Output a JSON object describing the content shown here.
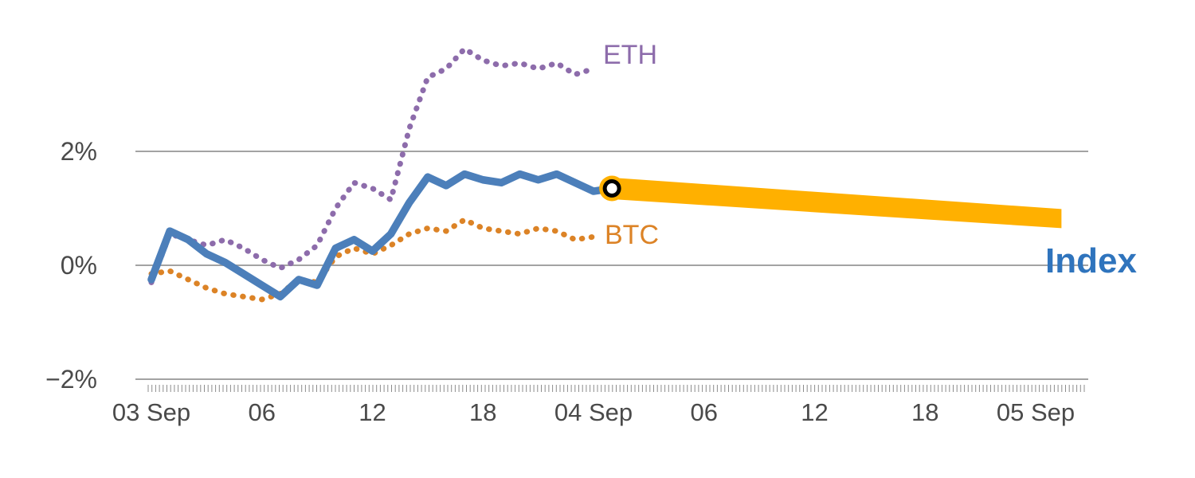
{
  "chart_data": {
    "type": "line",
    "title": "",
    "x_unit": "hours since 03 Sep 00:00",
    "xlim": [
      0,
      50.8
    ],
    "ylim": [
      -2.2,
      3.9
    ],
    "grid": "horizontal",
    "legend_position": "inline-end-of-line-labels",
    "xticks": [
      {
        "hour": 0,
        "label": "03 Sep"
      },
      {
        "hour": 6,
        "label": "06"
      },
      {
        "hour": 12,
        "label": "12"
      },
      {
        "hour": 18,
        "label": "18"
      },
      {
        "hour": 24,
        "label": "04 Sep"
      },
      {
        "hour": 30,
        "label": "06"
      },
      {
        "hour": 36,
        "label": "12"
      },
      {
        "hour": 42,
        "label": "18"
      },
      {
        "hour": 48,
        "label": "05 Sep"
      }
    ],
    "yticks": [
      {
        "value": 2,
        "label": "2%"
      },
      {
        "value": 0,
        "label": "0%"
      },
      {
        "value": -2,
        "label": "−2%"
      }
    ],
    "series": [
      {
        "name": "ETH",
        "color": "#8d6cab",
        "style": "dotted",
        "x": [
          0,
          1,
          2,
          3,
          4,
          5,
          6,
          7,
          8,
          9,
          10,
          11,
          12,
          13,
          14,
          15,
          16,
          17,
          18,
          19,
          20,
          21,
          22,
          23,
          24
        ],
        "values": [
          -0.3,
          0.55,
          0.45,
          0.35,
          0.45,
          0.3,
          0.1,
          -0.05,
          0.1,
          0.35,
          1.0,
          1.45,
          1.35,
          1.15,
          2.4,
          3.3,
          3.45,
          3.8,
          3.6,
          3.5,
          3.55,
          3.45,
          3.55,
          3.35,
          3.45
        ]
      },
      {
        "name": "BTC",
        "color": "#dc8326",
        "style": "dotted",
        "x": [
          0,
          1,
          2,
          3,
          4,
          5,
          6,
          7,
          8,
          9,
          10,
          11,
          12,
          13,
          14,
          15,
          16,
          17,
          18,
          19,
          20,
          21,
          22,
          23,
          24
        ],
        "values": [
          -0.15,
          -0.1,
          -0.25,
          -0.4,
          -0.5,
          -0.55,
          -0.6,
          -0.5,
          -0.25,
          -0.3,
          0.15,
          0.3,
          0.2,
          0.35,
          0.55,
          0.65,
          0.6,
          0.8,
          0.65,
          0.6,
          0.55,
          0.65,
          0.6,
          0.45,
          0.5
        ]
      },
      {
        "name": "Index",
        "color": "#4c7fba",
        "style": "solid",
        "x": [
          0,
          1,
          2,
          3,
          4,
          5,
          6,
          7,
          8,
          9,
          10,
          11,
          12,
          13,
          14,
          15,
          16,
          17,
          18,
          19,
          20,
          21,
          22,
          23,
          24,
          25
        ],
        "values": [
          -0.25,
          0.6,
          0.45,
          0.2,
          0.05,
          -0.15,
          -0.35,
          -0.55,
          -0.25,
          -0.35,
          0.3,
          0.45,
          0.25,
          0.55,
          1.1,
          1.55,
          1.4,
          1.6,
          1.5,
          1.45,
          1.6,
          1.5,
          1.6,
          1.45,
          1.3,
          1.35
        ]
      }
    ],
    "forecast_band": {
      "name": "Index forecast",
      "color": "#ffb000",
      "x": [
        25,
        49.4
      ],
      "values": [
        1.35,
        0.82
      ]
    },
    "marker": {
      "x": 25,
      "value": 1.35,
      "fill_color": "#ffb000",
      "ring_color": "#000000",
      "center_color": "#ffffff"
    },
    "colors": {
      "gridline": "#a3a3a3",
      "axis_ticks": "#8c8c8c",
      "tick_text": "#4a4a4a"
    }
  }
}
